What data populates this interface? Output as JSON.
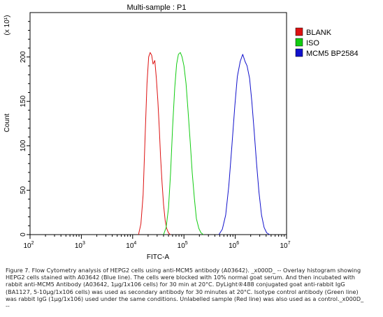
{
  "chart_data": {
    "type": "line",
    "title": "Multi-sample : P1",
    "xlabel": "FITC-A",
    "ylabel": "Count",
    "y_multiplier": "(x 10¹)",
    "x_scale": "log",
    "xlim": [
      100.0,
      10000000.0
    ],
    "ylim": [
      0,
      250
    ],
    "x_ticks": [
      {
        "base": "10",
        "exp": "2",
        "value": 100
      },
      {
        "base": "10",
        "exp": "3",
        "value": 1000
      },
      {
        "base": "10",
        "exp": "4",
        "value": 10000
      },
      {
        "base": "10",
        "exp": "5",
        "value": 100000
      },
      {
        "base": "10",
        "exp": "6",
        "value": 1000000
      },
      {
        "base": "10",
        "exp": "7",
        "value": 10000000
      }
    ],
    "y_ticks": [
      "0",
      "50",
      "100",
      "150",
      "200"
    ],
    "y_tick_values": [
      0,
      50,
      100,
      150,
      200
    ],
    "legend_position": "top-right",
    "series": [
      {
        "name": "BLANK",
        "color": "#dd1111",
        "x": [
          13000,
          14500,
          16000,
          17500,
          19000,
          20500,
          22000,
          23500,
          25000,
          27000,
          29000,
          31000,
          33000,
          35000,
          37500,
          40000,
          43000,
          46000,
          50000,
          54000
        ],
        "y": [
          0,
          12,
          45,
          110,
          170,
          200,
          205,
          202,
          192,
          196,
          176,
          150,
          120,
          88,
          58,
          34,
          16,
          7,
          2,
          0
        ]
      },
      {
        "name": "ISO",
        "color": "#11cc11",
        "x": [
          40000,
          45000,
          50000,
          55000,
          60000,
          66000,
          72000,
          78000,
          85000,
          92000,
          100000,
          110000,
          120000,
          132000,
          145000,
          160000,
          175000,
          195000,
          215000,
          240000
        ],
        "y": [
          0,
          8,
          30,
          70,
          120,
          165,
          192,
          203,
          205,
          200,
          190,
          170,
          140,
          105,
          70,
          40,
          18,
          7,
          2,
          0
        ]
      },
      {
        "name": "MCM5 BP2584",
        "color": "#1111cc",
        "x": [
          480000,
          560000,
          650000,
          750000,
          860000,
          980000,
          1100000,
          1250000,
          1400000,
          1550000,
          1700000,
          1900000,
          2100000,
          2350000,
          2600000,
          2900000,
          3250000,
          3650000,
          4100000,
          4700000
        ],
        "y": [
          0,
          6,
          22,
          55,
          100,
          145,
          178,
          195,
          203,
          195,
          190,
          176,
          150,
          115,
          80,
          48,
          22,
          8,
          2,
          0
        ]
      }
    ]
  },
  "caption": {
    "lines": [
      "Figure 7. Flow Cytometry analysis of HEPG2 cells using anti-MCM5 antibody (A03642).  _x000D_ -- Overlay histogram showing",
      "HEPG2 cells stained with A03642 (Blue line). The cells were blocked with 10% normal goat serum. And then incubated with",
      "rabbit anti-MCM5 Antibody (A03642, 1μg/1x106 cells) for 30 min at 20°C. DyLight®488 conjugated goat anti-rabbit IgG",
      "(BA1127, 5-10μg/1x106 cells) was used as secondary antibody for 30 minutes at 20°C. Isotype control antibody (Green line)",
      "was rabbit IgG (1μg/1x106) used under the same conditions. Unlabelled sample (Red line) was also used as a control._x000D_",
      "--"
    ]
  }
}
